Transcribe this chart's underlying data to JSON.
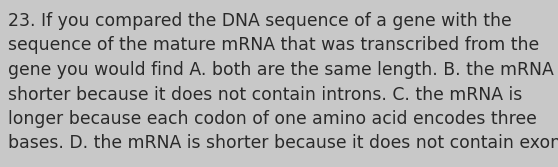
{
  "wrapped_lines": [
    "23. If you compared the DNA sequence of a gene with the",
    "sequence of the mature mRNA that was transcribed from the",
    "gene you would find A. both are the same length. B. the mRNA is",
    "shorter because it does not contain introns. C. the mRNA is",
    "longer because each codon of one amino acid encodes three",
    "bases. D. the mRNA is shorter because it does not contain exons"
  ],
  "background_color": "#c8c8c8",
  "text_color": "#2a2a2a",
  "font_size": 12.4,
  "fig_width": 5.58,
  "fig_height": 1.67,
  "dpi": 100
}
